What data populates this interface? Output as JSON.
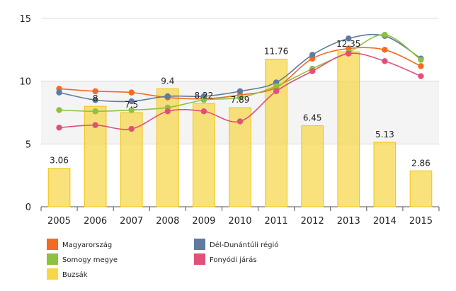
{
  "chart_data": {
    "type": "bar",
    "categories": [
      "2005",
      "2006",
      "2007",
      "2008",
      "2009",
      "2010",
      "2011",
      "2012",
      "2013",
      "2014",
      "2015"
    ],
    "ylim": [
      0,
      15
    ],
    "yticks": [
      0,
      5,
      10,
      15
    ],
    "grid": "horizontal",
    "legend_position": "bottom-left",
    "bar_series": {
      "name": "Buzsák",
      "color": "#f7d748",
      "values": [
        3.06,
        8,
        7.5,
        9.4,
        8.22,
        7.89,
        11.76,
        6.45,
        12.35,
        5.13,
        2.86
      ],
      "labels": [
        "3.06",
        "8",
        "7.5",
        "9.4",
        "8.22",
        "7.89",
        "11.76",
        "6.45",
        "12.35",
        "5.13",
        "2.86"
      ]
    },
    "line_series": [
      {
        "name": "Magyarország",
        "color": "#f26b21",
        "values": [
          9.4,
          9.2,
          9.1,
          8.7,
          8.6,
          8.9,
          9.5,
          11.8,
          12.6,
          12.5,
          11.2
        ]
      },
      {
        "name": "Dél-Dunántúli régió",
        "color": "#5f7a9e",
        "values": [
          9.1,
          8.5,
          8.4,
          8.8,
          8.8,
          9.2,
          9.9,
          12.1,
          13.4,
          13.6,
          11.8
        ]
      },
      {
        "name": "Somogy megye",
        "color": "#8dc13f",
        "values": [
          7.7,
          7.6,
          7.7,
          7.9,
          8.5,
          8.7,
          9.6,
          11.0,
          12.3,
          13.7,
          11.7
        ]
      },
      {
        "name": "Fonyódi járás",
        "color": "#e0507a",
        "values": [
          6.3,
          6.5,
          6.2,
          7.6,
          7.6,
          6.8,
          9.2,
          10.8,
          12.2,
          11.6,
          10.4
        ]
      }
    ]
  }
}
